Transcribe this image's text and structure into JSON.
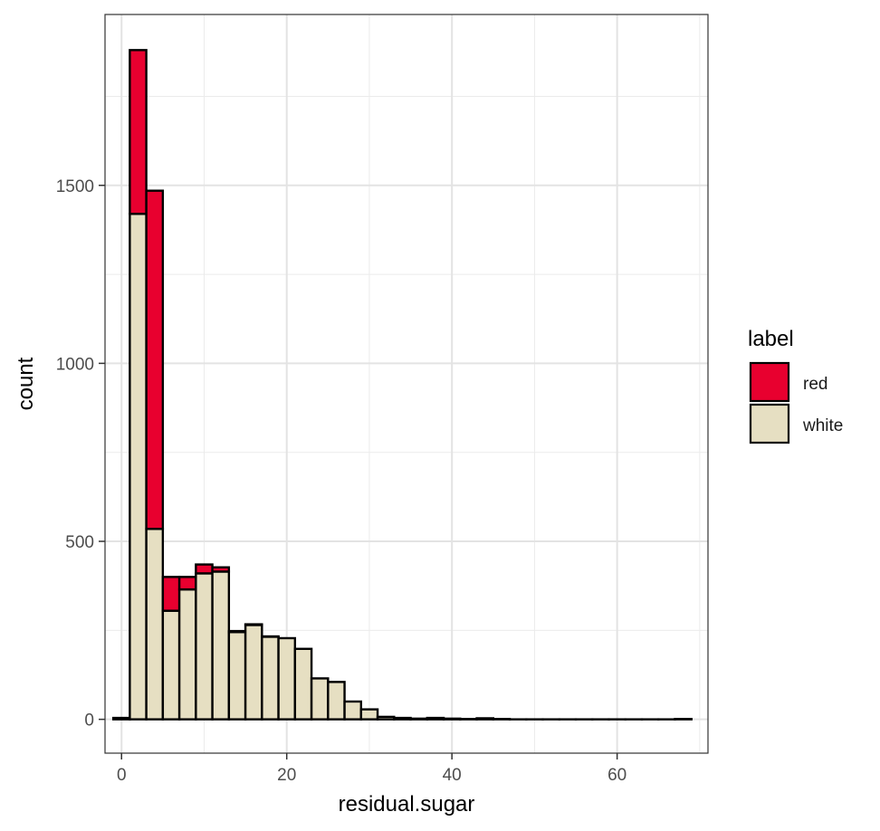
{
  "chart_data": {
    "type": "bar",
    "subtype": "stacked-histogram",
    "xlabel": "residual.sugar",
    "ylabel": "count",
    "xlim": [
      -2,
      71
    ],
    "ylim": [
      -95,
      1980
    ],
    "xticks": [
      0,
      20,
      40,
      60
    ],
    "yticks": [
      0,
      500,
      1000,
      1500
    ],
    "xtick_labels": [
      "0",
      "20",
      "40",
      "60"
    ],
    "ytick_labels": [
      "0",
      "500",
      "1000",
      "1500"
    ],
    "grid": true,
    "legend": {
      "title": "label",
      "position": "right"
    },
    "bin_width": 2,
    "bins": [
      {
        "x": 0,
        "white": 4,
        "red": 0
      },
      {
        "x": 2,
        "white": 1420,
        "red": 460
      },
      {
        "x": 4,
        "white": 535,
        "red": 950
      },
      {
        "x": 6,
        "white": 305,
        "red": 95
      },
      {
        "x": 8,
        "white": 365,
        "red": 35
      },
      {
        "x": 10,
        "white": 410,
        "red": 25
      },
      {
        "x": 12,
        "white": 415,
        "red": 12
      },
      {
        "x": 14,
        "white": 245,
        "red": 3
      },
      {
        "x": 16,
        "white": 265,
        "red": 2
      },
      {
        "x": 18,
        "white": 232,
        "red": 1
      },
      {
        "x": 20,
        "white": 228,
        "red": 0
      },
      {
        "x": 22,
        "white": 198,
        "red": 0
      },
      {
        "x": 24,
        "white": 115,
        "red": 0
      },
      {
        "x": 26,
        "white": 105,
        "red": 0
      },
      {
        "x": 28,
        "white": 50,
        "red": 0
      },
      {
        "x": 30,
        "white": 28,
        "red": 0
      },
      {
        "x": 32,
        "white": 7,
        "red": 0
      },
      {
        "x": 34,
        "white": 4,
        "red": 0
      },
      {
        "x": 36,
        "white": 2,
        "red": 0
      },
      {
        "x": 38,
        "white": 4,
        "red": 0
      },
      {
        "x": 40,
        "white": 2,
        "red": 0
      },
      {
        "x": 42,
        "white": 1,
        "red": 0
      },
      {
        "x": 44,
        "white": 3,
        "red": 0
      },
      {
        "x": 46,
        "white": 1,
        "red": 0
      },
      {
        "x": 48,
        "white": 0,
        "red": 0
      },
      {
        "x": 50,
        "white": 0,
        "red": 0
      },
      {
        "x": 52,
        "white": 0,
        "red": 0
      },
      {
        "x": 54,
        "white": 0,
        "red": 0
      },
      {
        "x": 56,
        "white": 0,
        "red": 0
      },
      {
        "x": 58,
        "white": 0,
        "red": 0
      },
      {
        "x": 60,
        "white": 0,
        "red": 0
      },
      {
        "x": 62,
        "white": 0,
        "red": 0
      },
      {
        "x": 64,
        "white": 0,
        "red": 0
      },
      {
        "x": 66,
        "white": 0,
        "red": 0
      },
      {
        "x": 68,
        "white": 1,
        "red": 0
      }
    ],
    "series": [
      {
        "name": "red",
        "color": "#e8002f"
      },
      {
        "name": "white",
        "color": "#e6dfc2"
      }
    ]
  }
}
